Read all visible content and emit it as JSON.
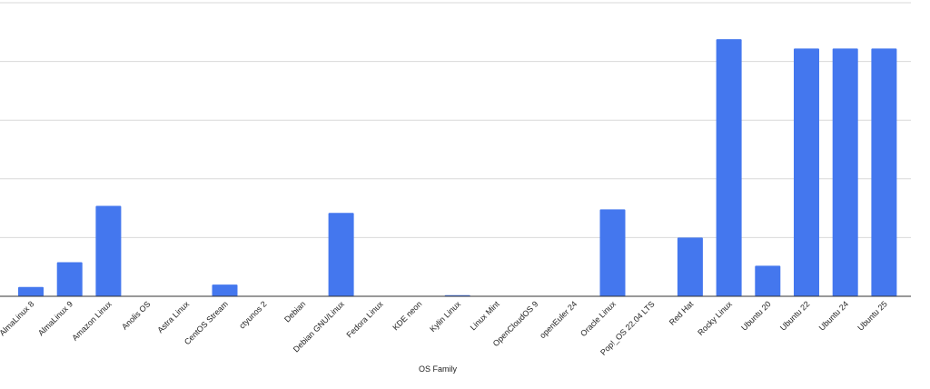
{
  "chart_data": {
    "type": "bar",
    "xlabel": "OS Family",
    "ylabel": "",
    "grid": true,
    "bar_color": "#4477ee",
    "grid_color": "#d9d9d9",
    "axis_color": "#333333",
    "ylim": [
      0,
      250
    ],
    "categories": [
      "AlmaLinux 8",
      "AlmaLinux 9",
      "Amazon Linux",
      "Anolis OS",
      "Astra Linux",
      "CentOS Stream",
      "ctyunos 2",
      "Debian",
      "Debian GNU/Linux",
      "Fedora Linux",
      "KDE neon",
      "Kylin Linux",
      "Linux Mint",
      "OpenCloudOS 9",
      "openEuler 24",
      "Oracle Linux",
      "Pop!_OS 22.04 LTS",
      "Red Hat",
      "Rocky Linux",
      "Ubuntu 20",
      "Ubuntu 22",
      "Ubuntu 24",
      "Ubuntu 25"
    ],
    "values": [
      8,
      29,
      77,
      0,
      0,
      10,
      0,
      0,
      71,
      0,
      0,
      1,
      0,
      0,
      0,
      74,
      0,
      50,
      219,
      26,
      211,
      211,
      211
    ]
  }
}
